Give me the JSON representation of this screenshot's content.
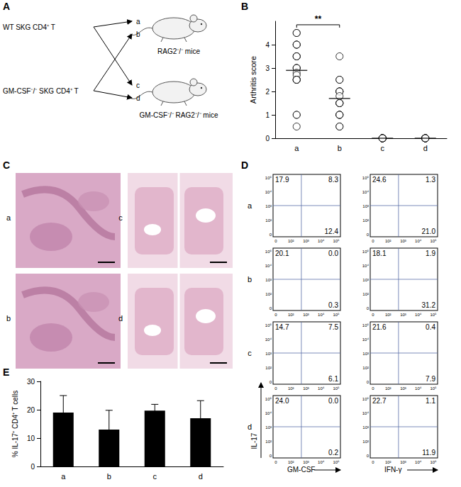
{
  "figure": {
    "A": {
      "label": "A",
      "donors": [
        "WT SKG CD4⁺ T",
        "GM-CSF⁻/⁻ SKG CD4⁺ T"
      ],
      "recipients": [
        "RAG2⁻/⁻ mice",
        "GM-CSF⁻/⁻ RAG2⁻/⁻ mice"
      ],
      "groups": [
        {
          "id": "a",
          "donor": 0,
          "recipient": 0
        },
        {
          "id": "b",
          "donor": 1,
          "recipient": 0
        },
        {
          "id": "c",
          "donor": 0,
          "recipient": 1
        },
        {
          "id": "d",
          "donor": 1,
          "recipient": 1
        }
      ]
    },
    "C": {
      "label": "C",
      "images": [
        "a",
        "b",
        "c",
        "d"
      ]
    },
    "D": {
      "label": "D",
      "y_label": "IL-17",
      "x_labels": [
        "GM-CSF",
        "IFN-γ"
      ],
      "tick_labels": [
        "0",
        "10²",
        "10³",
        "10⁴",
        "10⁵"
      ],
      "rows": [
        {
          "id": "a",
          "plots": [
            [
              "17.9",
              "8.3",
              "12.4"
            ],
            [
              "24.6",
              "1.3",
              "21.0"
            ]
          ]
        },
        {
          "id": "b",
          "plots": [
            [
              "20.1",
              "0.0",
              "0.3"
            ],
            [
              "18.1",
              "1.9",
              "31.2"
            ]
          ]
        },
        {
          "id": "c",
          "plots": [
            [
              "14.7",
              "7.5",
              "6.1"
            ],
            [
              "21.6",
              "0.4",
              "7.9"
            ]
          ]
        },
        {
          "id": "d",
          "plots": [
            [
              "24.0",
              "0.0",
              "0.2"
            ],
            [
              "22.7",
              "1.1",
              "11.9"
            ]
          ]
        }
      ]
    }
  },
  "chart_data": [
    {
      "type": "scatter",
      "label": "B",
      "y_label": "Arthritis score",
      "categories": [
        "a",
        "b",
        "c",
        "d"
      ],
      "values": [
        [
          4.5,
          4.5,
          4.0,
          4.0,
          4.0,
          3.5,
          3.5,
          3.5,
          3.0,
          3.0,
          3.0,
          2.8,
          2.7,
          2.5,
          2.5,
          2.5,
          2.5,
          1.0,
          1.0,
          0.5
        ],
        [
          3.5,
          2.5,
          2.5,
          2.0,
          2.0,
          2.0,
          2.0,
          1.8,
          1.5,
          1.5,
          1.5,
          1.5,
          1.0,
          1.0,
          1.0,
          1.0,
          0.5,
          0.5
        ],
        [
          0,
          0,
          0,
          0,
          0,
          0,
          0,
          0,
          0,
          0
        ],
        [
          0,
          0,
          0,
          0,
          0,
          0,
          0,
          0,
          0,
          0
        ]
      ],
      "means": [
        2.9,
        1.7,
        0,
        0
      ],
      "marker": "circle_open",
      "color": "#000000",
      "ylim": [
        0,
        5
      ],
      "yticks": [
        0,
        1,
        2,
        3,
        4
      ],
      "annotations": [
        {
          "text": "**",
          "from": "a",
          "to": "b",
          "y": 4.85
        }
      ]
    },
    {
      "type": "bar",
      "label": "E",
      "y_label": "% IL-17⁺ CD4⁺ T cells",
      "categories": [
        "a",
        "b",
        "c",
        "d"
      ],
      "values": [
        19,
        13,
        19.7,
        17
      ],
      "errors": [
        6,
        6.8,
        2.2,
        6.2
      ],
      "color": "#000000",
      "ylim": [
        0,
        30
      ],
      "yticks": [
        0,
        10,
        20,
        30
      ]
    }
  ]
}
